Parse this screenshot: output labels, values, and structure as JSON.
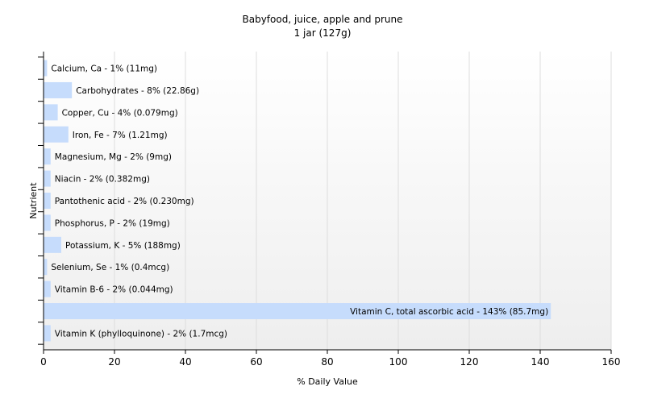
{
  "chart_data": {
    "type": "bar",
    "orientation": "horizontal",
    "title": "Babyfood, juice, apple and prune",
    "subtitle": "1 jar (127g)",
    "xlabel": "% Daily Value",
    "ylabel": "Nutrient",
    "xlim": [
      0,
      160
    ],
    "xticks": [
      0,
      20,
      40,
      60,
      80,
      100,
      120,
      140,
      160
    ],
    "grid": true,
    "bar_color": "#c6dcfc",
    "categories": [
      "Calcium, Ca",
      "Carbohydrates",
      "Copper, Cu",
      "Iron, Fe",
      "Magnesium, Mg",
      "Niacin",
      "Pantothenic acid",
      "Phosphorus, P",
      "Potassium, K",
      "Selenium, Se",
      "Vitamin B-6",
      "Vitamin C, total ascorbic acid",
      "Vitamin K (phylloquinone)"
    ],
    "values": [
      1,
      8,
      4,
      7,
      2,
      2,
      2,
      2,
      5,
      1,
      2,
      143,
      2
    ],
    "labels": [
      "Calcium, Ca - 1% (11mg)",
      "Carbohydrates - 8% (22.86g)",
      "Copper, Cu - 4% (0.079mg)",
      "Iron, Fe - 7% (1.21mg)",
      "Magnesium, Mg - 2% (9mg)",
      "Niacin - 2% (0.382mg)",
      "Pantothenic acid - 2% (0.230mg)",
      "Phosphorus, P - 2% (19mg)",
      "Potassium, K - 5% (188mg)",
      "Selenium, Se - 1% (0.4mcg)",
      "Vitamin B-6 - 2% (0.044mg)",
      "Vitamin C, total ascorbic acid - 143% (85.7mg)",
      "Vitamin K (phylloquinone) - 2% (1.7mcg)"
    ]
  }
}
